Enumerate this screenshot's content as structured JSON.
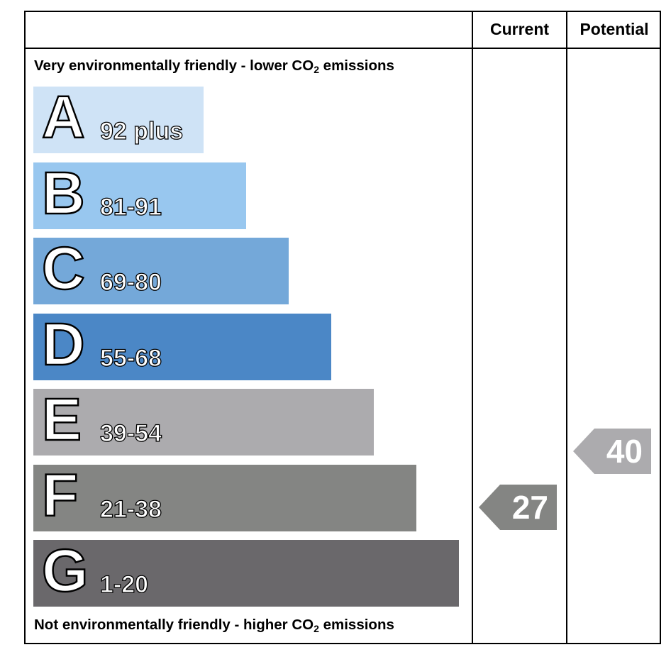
{
  "chart_data": {
    "type": "bar",
    "columns": {
      "current": "Current",
      "potential": "Potential"
    },
    "top_caption": {
      "text": "Very environmentally friendly - lower CO",
      "sub": "2",
      "tail": " emissions"
    },
    "bottom_caption": {
      "text": "Not environmentally friendly - higher CO",
      "sub": "2",
      "tail": " emissions"
    },
    "bands": [
      {
        "letter": "A",
        "range": "92 plus",
        "color": "#cfe3f6"
      },
      {
        "letter": "B",
        "range": "81-91",
        "color": "#98c7ef"
      },
      {
        "letter": "C",
        "range": "69-80",
        "color": "#74a8d9"
      },
      {
        "letter": "D",
        "range": "55-68",
        "color": "#4b87c6"
      },
      {
        "letter": "E",
        "range": "39-54",
        "color": "#acabae"
      },
      {
        "letter": "F",
        "range": "21-38",
        "color": "#848583"
      },
      {
        "letter": "G",
        "range": "1-20",
        "color": "#6a686b"
      }
    ],
    "current": {
      "value": 27,
      "band": "F",
      "color": "#848583"
    },
    "potential": {
      "value": 40,
      "band": "E",
      "color": "#acabae"
    }
  }
}
